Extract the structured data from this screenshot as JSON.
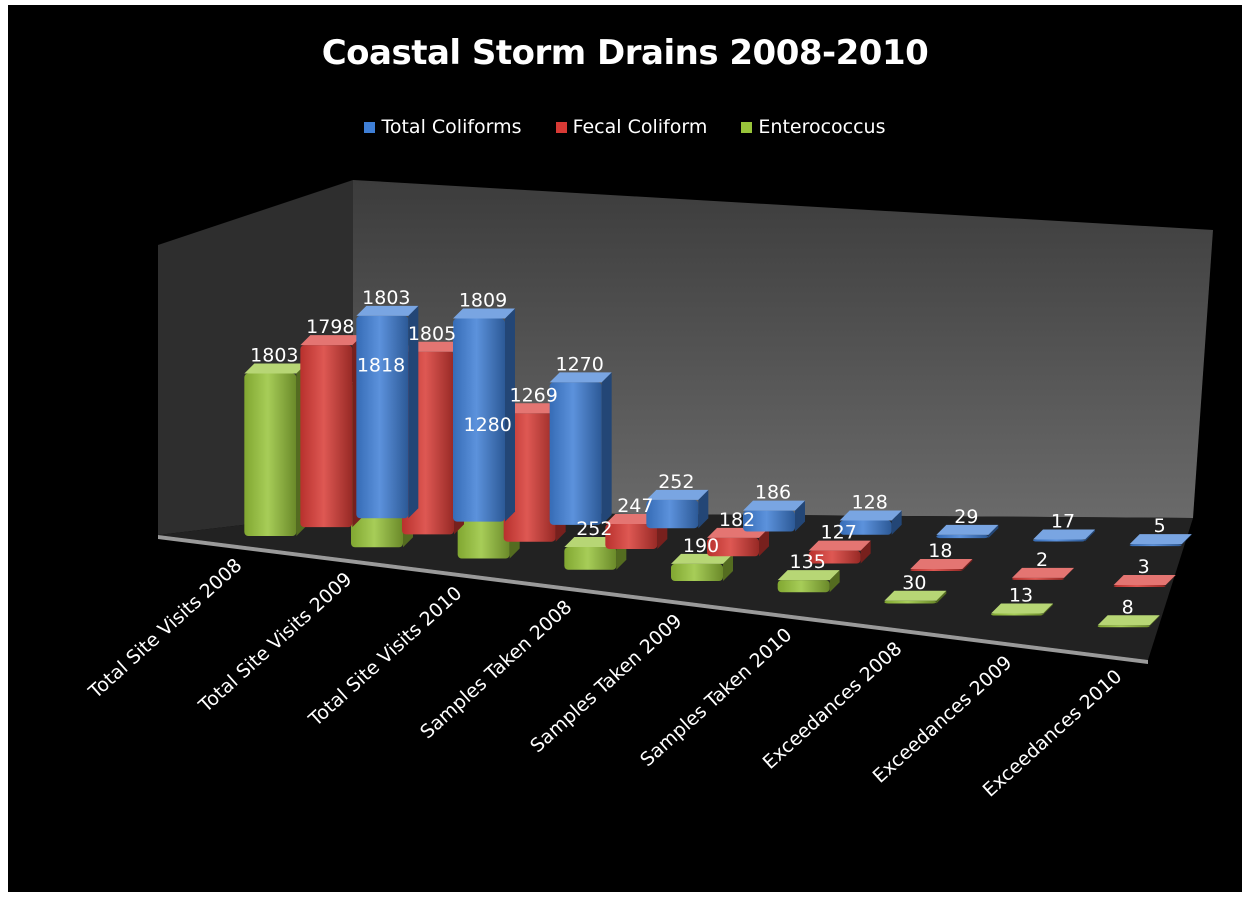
{
  "chart_data": {
    "type": "bar",
    "title": "Coastal Storm Drains 2008-2010",
    "xlabel": "",
    "ylabel": "",
    "ylim": [
      0,
      2000
    ],
    "legend_position": "top",
    "grid": false,
    "categories": [
      "Total Site Visits 2008",
      "Total Site Visits 2009",
      "Total Site Visits 2010",
      "Samples Taken 2008",
      "Samples Taken 2009",
      "Samples Taken 2010",
      "Exceedances 2008",
      "Exceedances 2009",
      "Exceedances 2010"
    ],
    "series": [
      {
        "name": "Total Coliforms",
        "color": "#3f7fd6",
        "values": [
          1803,
          1809,
          1270,
          252,
          186,
          128,
          29,
          17,
          5
        ]
      },
      {
        "name": "Fecal Coliform",
        "color": "#d83a35",
        "values": [
          1798,
          1805,
          1269,
          247,
          182,
          127,
          18,
          2,
          3
        ]
      },
      {
        "name": "Enterococcus",
        "color": "#98c43a",
        "values": [
          1803,
          1818,
          1280,
          252,
          190,
          135,
          30,
          13,
          8
        ]
      }
    ]
  }
}
